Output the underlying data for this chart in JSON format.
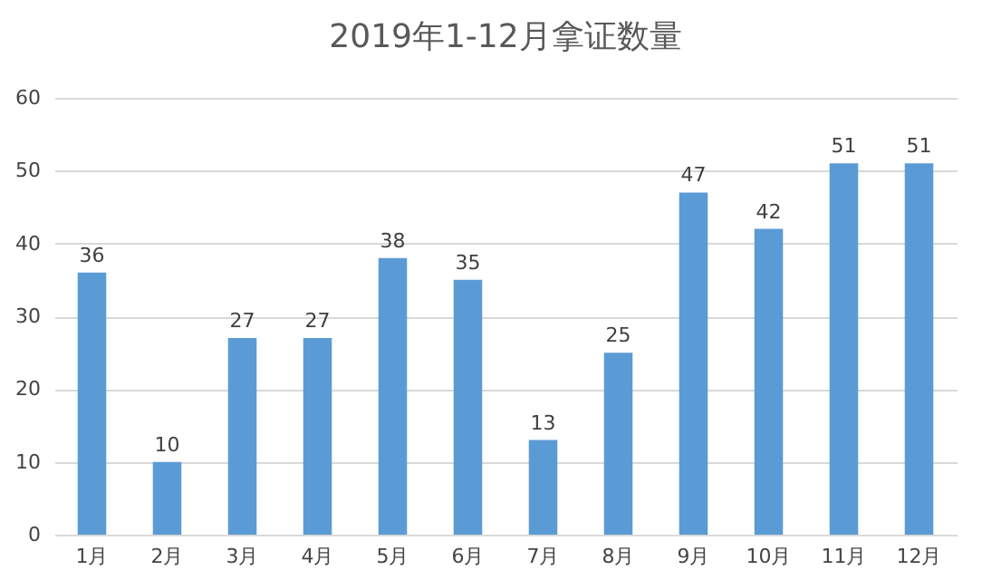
{
  "chart_data": {
    "type": "bar",
    "title": "2019年1-12月拿证数量",
    "categories": [
      "1月",
      "2月",
      "3月",
      "4月",
      "5月",
      "6月",
      "7月",
      "8月",
      "9月",
      "10月",
      "11月",
      "12月"
    ],
    "values": [
      36,
      10,
      27,
      27,
      38,
      35,
      13,
      25,
      47,
      42,
      51,
      51
    ],
    "color": "#5b9bd5",
    "ylim": [
      0,
      60
    ],
    "yticks": [
      0,
      10,
      20,
      30,
      40,
      50,
      60
    ],
    "grid": "y",
    "data_labels": true
  }
}
